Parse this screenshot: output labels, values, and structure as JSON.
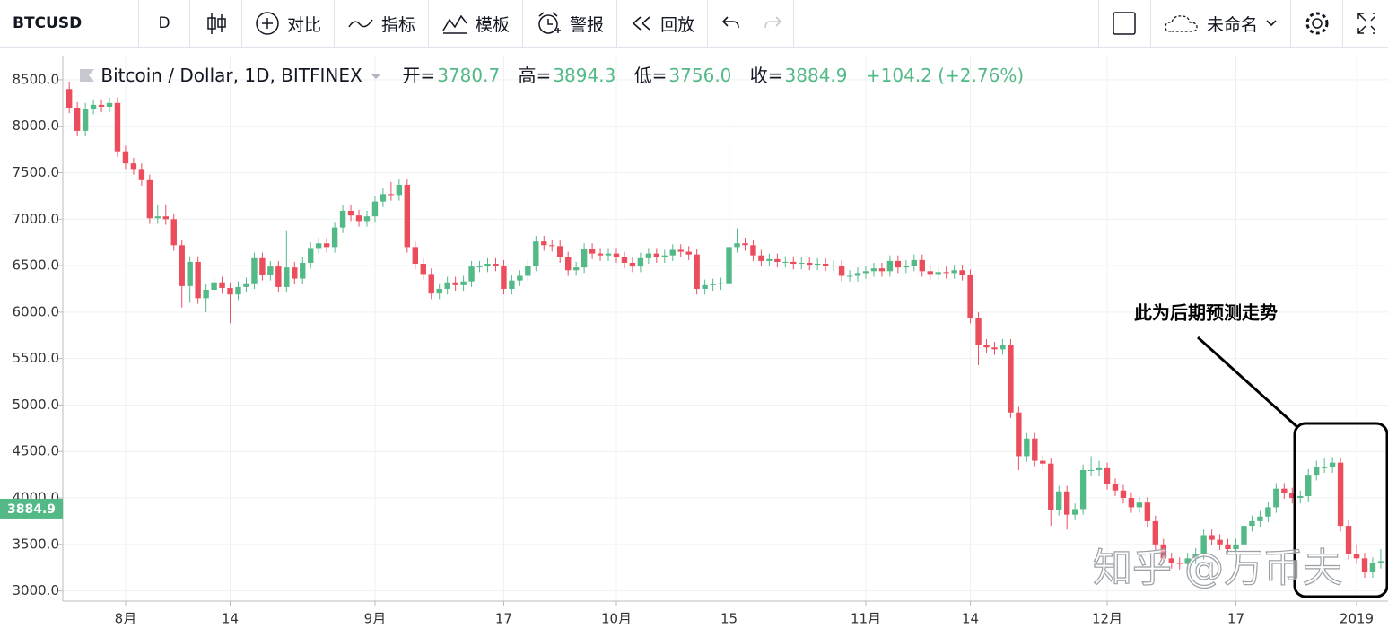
{
  "toolbar": {
    "symbol": "BTCUSD",
    "interval": "D",
    "compare": "对比",
    "indicators": "指标",
    "templates": "模板",
    "alert": "警报",
    "replay": "回放",
    "layout_name": "未命名"
  },
  "legend": {
    "title": "Bitcoin / Dollar, 1D, BITFINEX",
    "open_label": "开=",
    "open": "3780.7",
    "high_label": "高=",
    "high": "3894.3",
    "low_label": "低=",
    "low": "3756.0",
    "close_label": "收=",
    "close": "3884.9",
    "change": "+104.2 (+2.76%)"
  },
  "annotation": "此为后期预测走势",
  "watermark": "知乎 @万币夫",
  "chart_data": {
    "type": "candlestick",
    "up_color": "#53b987",
    "down_color": "#eb4d5c",
    "grid": true,
    "xlim": [
      -0.8,
      163.9
    ],
    "xticks": [
      {
        "value": 7,
        "label": "8月"
      },
      {
        "value": 20,
        "label": "14"
      },
      {
        "value": 38,
        "label": "9月"
      },
      {
        "value": 54,
        "label": "17"
      },
      {
        "value": 68,
        "label": "10月"
      },
      {
        "value": 82,
        "label": "15"
      },
      {
        "value": 99,
        "label": "11月"
      },
      {
        "value": 112,
        "label": "14"
      },
      {
        "value": 129,
        "label": "12月"
      },
      {
        "value": 145,
        "label": "17"
      },
      {
        "value": 160,
        "label": "2019"
      }
    ],
    "ylim": [
      2890,
      8760
    ],
    "yticks": [
      {
        "value": 3000,
        "label": "3000.0"
      },
      {
        "value": 3500,
        "label": "3500.0"
      },
      {
        "value": 4000,
        "label": "4000.0"
      },
      {
        "value": 4500,
        "label": "4500.0"
      },
      {
        "value": 5000,
        "label": "5000.0"
      },
      {
        "value": 5500,
        "label": "5500.0"
      },
      {
        "value": 6000,
        "label": "6000.0"
      },
      {
        "value": 6500,
        "label": "6500.0"
      },
      {
        "value": 7000,
        "label": "7000.0"
      },
      {
        "value": 7500,
        "label": "7500.0"
      },
      {
        "value": 8000,
        "label": "8000.0"
      },
      {
        "value": 8500,
        "label": "8500.0"
      }
    ],
    "last_price": 3884.9,
    "ohlc": [
      [
        8400,
        8480,
        8140,
        8200
      ],
      [
        8200,
        8260,
        7890,
        7950
      ],
      [
        7950,
        8250,
        7890,
        8190
      ],
      [
        8190,
        8290,
        8130,
        8230
      ],
      [
        8230,
        8290,
        8150,
        8210
      ],
      [
        8210,
        8310,
        8150,
        8250
      ],
      [
        8250,
        8310,
        7670,
        7730
      ],
      [
        7730,
        7790,
        7540,
        7600
      ],
      [
        7600,
        7660,
        7480,
        7540
      ],
      [
        7540,
        7600,
        7360,
        7420
      ],
      [
        7420,
        7480,
        6950,
        7010
      ],
      [
        7010,
        7150,
        6950,
        7030
      ],
      [
        7030,
        7160,
        6940,
        7000
      ],
      [
        7000,
        7060,
        6660,
        6720
      ],
      [
        6720,
        6780,
        6050,
        6280
      ],
      [
        6280,
        6600,
        6100,
        6540
      ],
      [
        6540,
        6600,
        6090,
        6150
      ],
      [
        6150,
        6300,
        6000,
        6240
      ],
      [
        6240,
        6380,
        6180,
        6320
      ],
      [
        6320,
        6380,
        6200,
        6260
      ],
      [
        6260,
        6320,
        5880,
        6190
      ],
      [
        6190,
        6330,
        6130,
        6270
      ],
      [
        6270,
        6370,
        6210,
        6310
      ],
      [
        6310,
        6640,
        6250,
        6580
      ],
      [
        6580,
        6640,
        6340,
        6400
      ],
      [
        6400,
        6550,
        6340,
        6490
      ],
      [
        6490,
        6550,
        6210,
        6270
      ],
      [
        6270,
        6880,
        6210,
        6480
      ],
      [
        6480,
        6540,
        6300,
        6360
      ],
      [
        6360,
        6590,
        6300,
        6530
      ],
      [
        6530,
        6750,
        6470,
        6690
      ],
      [
        6690,
        6800,
        6630,
        6740
      ],
      [
        6740,
        6800,
        6640,
        6700
      ],
      [
        6700,
        6970,
        6640,
        6910
      ],
      [
        6910,
        7150,
        6850,
        7090
      ],
      [
        7090,
        7150,
        6980,
        7040
      ],
      [
        7040,
        7100,
        6920,
        6980
      ],
      [
        6980,
        7090,
        6920,
        7030
      ],
      [
        7030,
        7250,
        6970,
        7190
      ],
      [
        7190,
        7330,
        7130,
        7270
      ],
      [
        7270,
        7400,
        7200,
        7260
      ],
      [
        7260,
        7430,
        7200,
        7370
      ],
      [
        7370,
        7430,
        6640,
        6700
      ],
      [
        6700,
        6760,
        6460,
        6520
      ],
      [
        6520,
        6580,
        6350,
        6410
      ],
      [
        6410,
        6470,
        6140,
        6200
      ],
      [
        6200,
        6310,
        6140,
        6250
      ],
      [
        6250,
        6380,
        6190,
        6320
      ],
      [
        6320,
        6380,
        6230,
        6290
      ],
      [
        6290,
        6390,
        6230,
        6330
      ],
      [
        6330,
        6550,
        6270,
        6490
      ],
      [
        6490,
        6550,
        6430,
        6490
      ],
      [
        6490,
        6580,
        6430,
        6520
      ],
      [
        6520,
        6580,
        6440,
        6500
      ],
      [
        6500,
        6560,
        6190,
        6250
      ],
      [
        6250,
        6400,
        6190,
        6340
      ],
      [
        6340,
        6450,
        6280,
        6390
      ],
      [
        6390,
        6560,
        6330,
        6500
      ],
      [
        6500,
        6820,
        6440,
        6760
      ],
      [
        6760,
        6820,
        6660,
        6720
      ],
      [
        6720,
        6780,
        6650,
        6710
      ],
      [
        6710,
        6770,
        6530,
        6590
      ],
      [
        6590,
        6650,
        6390,
        6450
      ],
      [
        6450,
        6540,
        6390,
        6480
      ],
      [
        6480,
        6740,
        6420,
        6680
      ],
      [
        6680,
        6740,
        6570,
        6630
      ],
      [
        6630,
        6690,
        6550,
        6610
      ],
      [
        6610,
        6690,
        6550,
        6630
      ],
      [
        6630,
        6690,
        6530,
        6590
      ],
      [
        6590,
        6650,
        6470,
        6530
      ],
      [
        6530,
        6590,
        6430,
        6490
      ],
      [
        6490,
        6640,
        6430,
        6580
      ],
      [
        6580,
        6690,
        6520,
        6630
      ],
      [
        6630,
        6690,
        6530,
        6590
      ],
      [
        6590,
        6670,
        6530,
        6610
      ],
      [
        6610,
        6730,
        6550,
        6670
      ],
      [
        6670,
        6730,
        6590,
        6650
      ],
      [
        6650,
        6710,
        6560,
        6620
      ],
      [
        6620,
        6680,
        6190,
        6250
      ],
      [
        6250,
        6350,
        6190,
        6290
      ],
      [
        6290,
        6360,
        6230,
        6300
      ],
      [
        6300,
        6370,
        6240,
        6310
      ],
      [
        6310,
        7780,
        6250,
        6700
      ],
      [
        6700,
        6900,
        6640,
        6740
      ],
      [
        6740,
        6800,
        6660,
        6720
      ],
      [
        6720,
        6780,
        6550,
        6610
      ],
      [
        6610,
        6670,
        6490,
        6550
      ],
      [
        6550,
        6630,
        6490,
        6570
      ],
      [
        6570,
        6630,
        6480,
        6540
      ],
      [
        6540,
        6600,
        6480,
        6540
      ],
      [
        6540,
        6600,
        6460,
        6520
      ],
      [
        6520,
        6590,
        6460,
        6530
      ],
      [
        6530,
        6590,
        6450,
        6510
      ],
      [
        6510,
        6580,
        6450,
        6520
      ],
      [
        6520,
        6580,
        6440,
        6500
      ],
      [
        6500,
        6560,
        6440,
        6500
      ],
      [
        6500,
        6560,
        6330,
        6390
      ],
      [
        6390,
        6450,
        6330,
        6390
      ],
      [
        6390,
        6480,
        6330,
        6420
      ],
      [
        6420,
        6500,
        6360,
        6440
      ],
      [
        6440,
        6530,
        6380,
        6470
      ],
      [
        6470,
        6530,
        6380,
        6440
      ],
      [
        6440,
        6610,
        6380,
        6550
      ],
      [
        6550,
        6610,
        6420,
        6480
      ],
      [
        6480,
        6560,
        6420,
        6500
      ],
      [
        6500,
        6620,
        6440,
        6560
      ],
      [
        6560,
        6620,
        6380,
        6440
      ],
      [
        6440,
        6500,
        6350,
        6410
      ],
      [
        6410,
        6490,
        6350,
        6430
      ],
      [
        6430,
        6490,
        6360,
        6420
      ],
      [
        6420,
        6510,
        6360,
        6450
      ],
      [
        6450,
        6510,
        6340,
        6400
      ],
      [
        6400,
        6460,
        5880,
        5940
      ],
      [
        5940,
        6000,
        5430,
        5650
      ],
      [
        5650,
        5710,
        5560,
        5620
      ],
      [
        5620,
        5680,
        5540,
        5600
      ],
      [
        5600,
        5710,
        5540,
        5650
      ],
      [
        5650,
        5710,
        4860,
        4920
      ],
      [
        4920,
        4980,
        4300,
        4450
      ],
      [
        4450,
        4700,
        4390,
        4640
      ],
      [
        4640,
        4700,
        4340,
        4400
      ],
      [
        4400,
        4460,
        4310,
        4370
      ],
      [
        4370,
        4430,
        3700,
        3870
      ],
      [
        3870,
        4130,
        3810,
        4070
      ],
      [
        4070,
        4130,
        3660,
        3820
      ],
      [
        3820,
        3940,
        3760,
        3880
      ],
      [
        3880,
        4360,
        3820,
        4300
      ],
      [
        4300,
        4450,
        4240,
        4300
      ],
      [
        4300,
        4400,
        4240,
        4320
      ],
      [
        4320,
        4380,
        4090,
        4150
      ],
      [
        4150,
        4210,
        4020,
        4080
      ],
      [
        4080,
        4140,
        3940,
        4000
      ],
      [
        4000,
        4060,
        3840,
        3900
      ],
      [
        3900,
        4010,
        3840,
        3950
      ],
      [
        3950,
        4010,
        3690,
        3750
      ],
      [
        3750,
        3810,
        3440,
        3500
      ],
      [
        3500,
        3560,
        3290,
        3350
      ],
      [
        3350,
        3410,
        3240,
        3300
      ],
      [
        3300,
        3360,
        3230,
        3290
      ],
      [
        3290,
        3410,
        3230,
        3350
      ],
      [
        3350,
        3460,
        3290,
        3400
      ],
      [
        3400,
        3660,
        3340,
        3600
      ],
      [
        3600,
        3660,
        3490,
        3550
      ],
      [
        3550,
        3610,
        3440,
        3500
      ],
      [
        3500,
        3560,
        3390,
        3450
      ],
      [
        3450,
        3560,
        3390,
        3500
      ],
      [
        3500,
        3760,
        3440,
        3700
      ],
      [
        3700,
        3810,
        3640,
        3750
      ],
      [
        3750,
        3860,
        3690,
        3800
      ],
      [
        3800,
        3960,
        3740,
        3900
      ],
      [
        3900,
        4160,
        3840,
        4100
      ],
      [
        4100,
        4160,
        3990,
        4050
      ],
      [
        4050,
        4110,
        3940,
        4000
      ],
      [
        4000,
        4080,
        3940,
        4020
      ],
      [
        4020,
        4310,
        3960,
        4250
      ],
      [
        4250,
        4400,
        4190,
        4330
      ],
      [
        4330,
        4430,
        4270,
        4330
      ],
      [
        4330,
        4440,
        4270,
        4380
      ],
      [
        4380,
        4440,
        3640,
        3700
      ],
      [
        3700,
        3760,
        3340,
        3400
      ],
      [
        3400,
        3500,
        3290,
        3350
      ],
      [
        3350,
        3410,
        3140,
        3200
      ],
      [
        3200,
        3360,
        3140,
        3300
      ],
      [
        3300,
        3450,
        3240,
        3320
      ]
    ]
  }
}
